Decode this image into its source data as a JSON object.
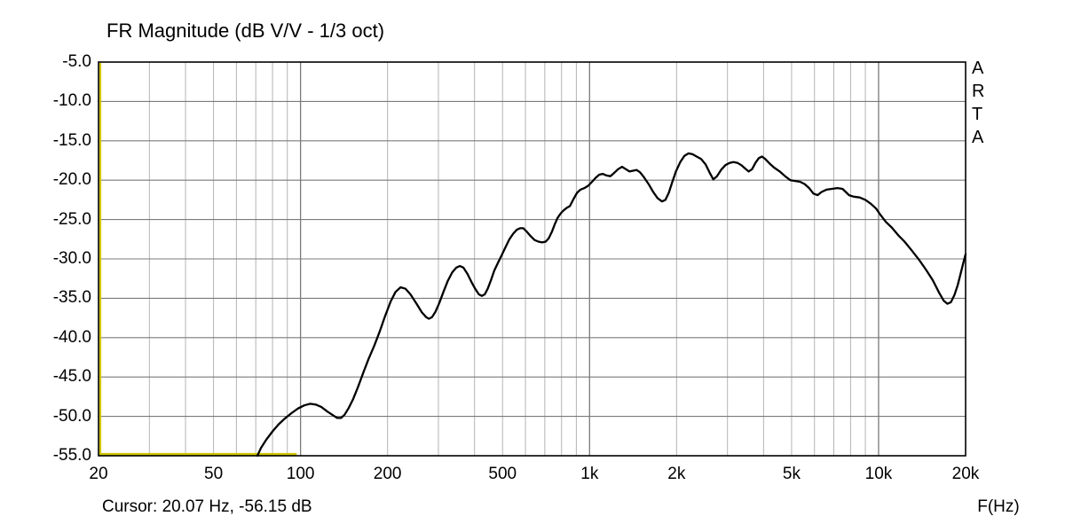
{
  "title": "FR Magnitude (dB V/V - 1/3 oct)",
  "watermark": "ARTA",
  "cursor_readout": "Cursor: 20.07 Hz, -56.15 dB",
  "colors": {
    "background": "#ffffff",
    "border": "#000000",
    "curve": "#000000",
    "cursor_line": "#cfc400",
    "grid_minor": "#b4b4b4",
    "grid_major": "#7a7a7a"
  },
  "x_axis": {
    "label": "F(Hz)",
    "scale": "log",
    "min": 20,
    "max": 20000,
    "ticks": [
      {
        "f": 20,
        "label": "20"
      },
      {
        "f": 50,
        "label": "50"
      },
      {
        "f": 100,
        "label": "100"
      },
      {
        "f": 200,
        "label": "200"
      },
      {
        "f": 500,
        "label": "500"
      },
      {
        "f": 1000,
        "label": "1k"
      },
      {
        "f": 2000,
        "label": "2k"
      },
      {
        "f": 5000,
        "label": "5k"
      },
      {
        "f": 10000,
        "label": "10k"
      },
      {
        "f": 20000,
        "label": "20k"
      }
    ]
  },
  "y_axis": {
    "unit": "dB",
    "min": -55,
    "max": -5,
    "step": 5,
    "ticks": [
      {
        "db": -5,
        "label": "-5.0"
      },
      {
        "db": -10,
        "label": "-10.0"
      },
      {
        "db": -15,
        "label": "-15.0"
      },
      {
        "db": -20,
        "label": "-20.0"
      },
      {
        "db": -25,
        "label": "-25.0"
      },
      {
        "db": -30,
        "label": "-30.0"
      },
      {
        "db": -35,
        "label": "-35.0"
      },
      {
        "db": -40,
        "label": "-40.0"
      },
      {
        "db": -45,
        "label": "-45.0"
      },
      {
        "db": -50,
        "label": "-50.0"
      },
      {
        "db": -55,
        "label": "-55.0"
      }
    ]
  },
  "chart_data": {
    "type": "line",
    "title": "FR Magnitude (dB V/V - 1/3 oct)",
    "xlabel": "F(Hz)",
    "ylabel": "dB V/V",
    "x_scale": "log",
    "xlim": [
      20,
      20000
    ],
    "ylim": [
      -55,
      -5
    ],
    "grid": true,
    "cursor": {
      "freq_hz": 20.07,
      "level_db": -56.15
    },
    "series": [
      {
        "name": "fr-magnitude-smoothed",
        "color": "#000000",
        "points": [
          [
            70.9,
            -55.0
          ],
          [
            73,
            -54.0
          ],
          [
            76,
            -53.0
          ],
          [
            80,
            -51.9
          ],
          [
            84,
            -51.0
          ],
          [
            88,
            -50.3
          ],
          [
            93,
            -49.6
          ],
          [
            98,
            -49.0
          ],
          [
            103,
            -48.6
          ],
          [
            108,
            -48.4
          ],
          [
            113,
            -48.5
          ],
          [
            118,
            -48.8
          ],
          [
            124,
            -49.4
          ],
          [
            130,
            -49.9
          ],
          [
            134,
            -50.2
          ],
          [
            138,
            -50.2
          ],
          [
            142,
            -49.8
          ],
          [
            147,
            -48.9
          ],
          [
            152,
            -47.8
          ],
          [
            158,
            -46.3
          ],
          [
            165,
            -44.4
          ],
          [
            172,
            -42.7
          ],
          [
            180,
            -41.0
          ],
          [
            188,
            -39.2
          ],
          [
            196,
            -37.3
          ],
          [
            205,
            -35.4
          ],
          [
            213,
            -34.2
          ],
          [
            222,
            -33.6
          ],
          [
            231,
            -33.8
          ],
          [
            240,
            -34.5
          ],
          [
            252,
            -35.7
          ],
          [
            263,
            -36.8
          ],
          [
            272,
            -37.4
          ],
          [
            278,
            -37.6
          ],
          [
            285,
            -37.4
          ],
          [
            293,
            -36.7
          ],
          [
            302,
            -35.6
          ],
          [
            312,
            -34.2
          ],
          [
            323,
            -32.8
          ],
          [
            335,
            -31.7
          ],
          [
            346,
            -31.1
          ],
          [
            356,
            -30.9
          ],
          [
            366,
            -31.1
          ],
          [
            378,
            -31.9
          ],
          [
            390,
            -32.9
          ],
          [
            402,
            -33.8
          ],
          [
            414,
            -34.5
          ],
          [
            424,
            -34.7
          ],
          [
            434,
            -34.5
          ],
          [
            444,
            -33.8
          ],
          [
            456,
            -32.7
          ],
          [
            468,
            -31.5
          ],
          [
            482,
            -30.5
          ],
          [
            497,
            -29.5
          ],
          [
            512,
            -28.5
          ],
          [
            528,
            -27.5
          ],
          [
            544,
            -26.8
          ],
          [
            560,
            -26.3
          ],
          [
            575,
            -26.1
          ],
          [
            590,
            -26.1
          ],
          [
            605,
            -26.5
          ],
          [
            625,
            -27.1
          ],
          [
            645,
            -27.6
          ],
          [
            665,
            -27.8
          ],
          [
            685,
            -27.9
          ],
          [
            705,
            -27.8
          ],
          [
            722,
            -27.4
          ],
          [
            740,
            -26.6
          ],
          [
            758,
            -25.6
          ],
          [
            775,
            -24.8
          ],
          [
            795,
            -24.2
          ],
          [
            815,
            -23.8
          ],
          [
            835,
            -23.5
          ],
          [
            855,
            -23.3
          ],
          [
            880,
            -22.4
          ],
          [
            905,
            -21.6
          ],
          [
            930,
            -21.2
          ],
          [
            960,
            -21.0
          ],
          [
            990,
            -20.7
          ],
          [
            1020,
            -20.2
          ],
          [
            1050,
            -19.7
          ],
          [
            1080,
            -19.3
          ],
          [
            1110,
            -19.2
          ],
          [
            1145,
            -19.4
          ],
          [
            1180,
            -19.5
          ],
          [
            1215,
            -19.1
          ],
          [
            1255,
            -18.6
          ],
          [
            1295,
            -18.3
          ],
          [
            1335,
            -18.6
          ],
          [
            1375,
            -18.9
          ],
          [
            1415,
            -18.8
          ],
          [
            1455,
            -18.7
          ],
          [
            1495,
            -19.0
          ],
          [
            1540,
            -19.6
          ],
          [
            1600,
            -20.5
          ],
          [
            1660,
            -21.5
          ],
          [
            1720,
            -22.3
          ],
          [
            1780,
            -22.7
          ],
          [
            1830,
            -22.5
          ],
          [
            1880,
            -21.6
          ],
          [
            1930,
            -20.3
          ],
          [
            1990,
            -18.9
          ],
          [
            2060,
            -17.7
          ],
          [
            2130,
            -16.9
          ],
          [
            2200,
            -16.6
          ],
          [
            2270,
            -16.7
          ],
          [
            2350,
            -17.0
          ],
          [
            2430,
            -17.3
          ],
          [
            2520,
            -18.0
          ],
          [
            2600,
            -19.0
          ],
          [
            2680,
            -19.9
          ],
          [
            2760,
            -19.5
          ],
          [
            2850,
            -18.7
          ],
          [
            2950,
            -18.1
          ],
          [
            3050,
            -17.8
          ],
          [
            3150,
            -17.7
          ],
          [
            3250,
            -17.8
          ],
          [
            3350,
            -18.1
          ],
          [
            3450,
            -18.5
          ],
          [
            3550,
            -18.9
          ],
          [
            3650,
            -18.6
          ],
          [
            3750,
            -17.8
          ],
          [
            3850,
            -17.2
          ],
          [
            3950,
            -17.0
          ],
          [
            4050,
            -17.3
          ],
          [
            4200,
            -17.9
          ],
          [
            4350,
            -18.4
          ],
          [
            4550,
            -18.9
          ],
          [
            4750,
            -19.5
          ],
          [
            4950,
            -20.0
          ],
          [
            5150,
            -20.1
          ],
          [
            5350,
            -20.2
          ],
          [
            5550,
            -20.5
          ],
          [
            5750,
            -21.0
          ],
          [
            5950,
            -21.7
          ],
          [
            6150,
            -21.9
          ],
          [
            6350,
            -21.5
          ],
          [
            6600,
            -21.2
          ],
          [
            6900,
            -21.1
          ],
          [
            7200,
            -21.0
          ],
          [
            7500,
            -21.1
          ],
          [
            7700,
            -21.5
          ],
          [
            7900,
            -21.9
          ],
          [
            8200,
            -22.1
          ],
          [
            8600,
            -22.2
          ],
          [
            9000,
            -22.5
          ],
          [
            9400,
            -23.0
          ],
          [
            9800,
            -23.6
          ],
          [
            10100,
            -24.3
          ],
          [
            10600,
            -25.3
          ],
          [
            11100,
            -26.0
          ],
          [
            11700,
            -27.0
          ],
          [
            12300,
            -27.8
          ],
          [
            13000,
            -28.9
          ],
          [
            13800,
            -30.1
          ],
          [
            14600,
            -31.4
          ],
          [
            15400,
            -32.7
          ],
          [
            16200,
            -34.3
          ],
          [
            16800,
            -35.3
          ],
          [
            17300,
            -35.7
          ],
          [
            17800,
            -35.5
          ],
          [
            18300,
            -34.6
          ],
          [
            18800,
            -33.3
          ],
          [
            19300,
            -31.6
          ],
          [
            19700,
            -30.3
          ],
          [
            20000,
            -29.4
          ]
        ]
      },
      {
        "name": "below-floor-segment",
        "color": "#cfc400",
        "points": [
          [
            20,
            -54.8
          ],
          [
            97,
            -54.8
          ]
        ]
      }
    ]
  }
}
